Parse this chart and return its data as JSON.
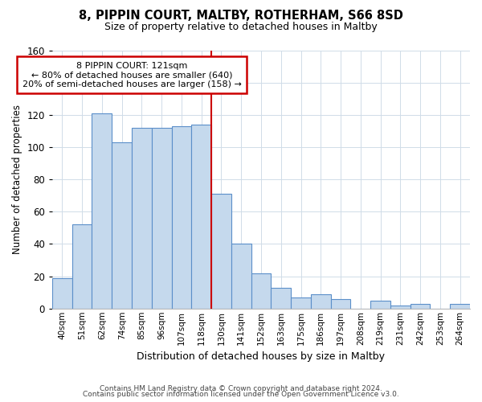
{
  "title": "8, PIPPIN COURT, MALTBY, ROTHERHAM, S66 8SD",
  "subtitle": "Size of property relative to detached houses in Maltby",
  "xlabel": "Distribution of detached houses by size in Maltby",
  "ylabel": "Number of detached properties",
  "bar_labels": [
    "40sqm",
    "51sqm",
    "62sqm",
    "74sqm",
    "85sqm",
    "96sqm",
    "107sqm",
    "118sqm",
    "130sqm",
    "141sqm",
    "152sqm",
    "163sqm",
    "175sqm",
    "186sqm",
    "197sqm",
    "208sqm",
    "219sqm",
    "231sqm",
    "242sqm",
    "253sqm",
    "264sqm"
  ],
  "bar_values": [
    19,
    52,
    121,
    103,
    112,
    112,
    113,
    114,
    71,
    40,
    22,
    13,
    7,
    9,
    6,
    0,
    5,
    2,
    3,
    0,
    3
  ],
  "bar_color": "#c5d9ed",
  "bar_edge_color": "#5b8fc9",
  "highlight_bar_index": 7,
  "annotation_title": "8 PIPPIN COURT: 121sqm",
  "annotation_line1": "← 80% of detached houses are smaller (640)",
  "annotation_line2": "20% of semi-detached houses are larger (158) →",
  "annotation_box_color": "#ffffff",
  "annotation_box_edge": "#cc0000",
  "vline_color": "#cc0000",
  "ylim": [
    0,
    160
  ],
  "grid_color": "#d0dce8",
  "footnote1": "Contains HM Land Registry data © Crown copyright and database right 2024.",
  "footnote2": "Contains public sector information licensed under the Open Government Licence v3.0."
}
